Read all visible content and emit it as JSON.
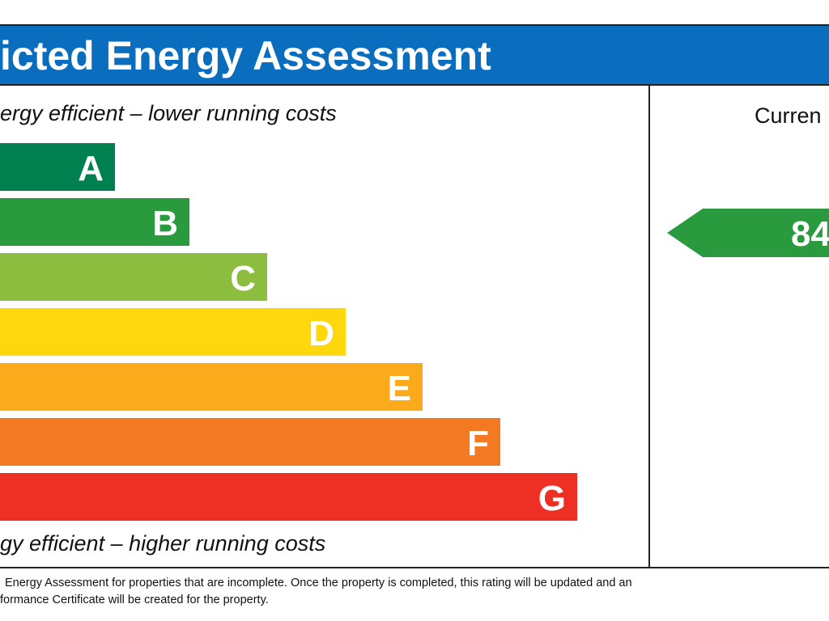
{
  "header": {
    "title": "icted Energy Assessment"
  },
  "efficiency": {
    "top": "ergy efficient – lower running costs",
    "bottom": "gy efficient – higher running costs"
  },
  "bands": [
    "A",
    "B",
    "C",
    "D",
    "E",
    "F",
    "G"
  ],
  "current": {
    "label": "Curren",
    "rating": 84
  },
  "footer": [
    "Energy Assessment for properties that are incomplete. Once the property is completed, this rating will be updated and an",
    "formance Certificate will be created for the property."
  ]
}
